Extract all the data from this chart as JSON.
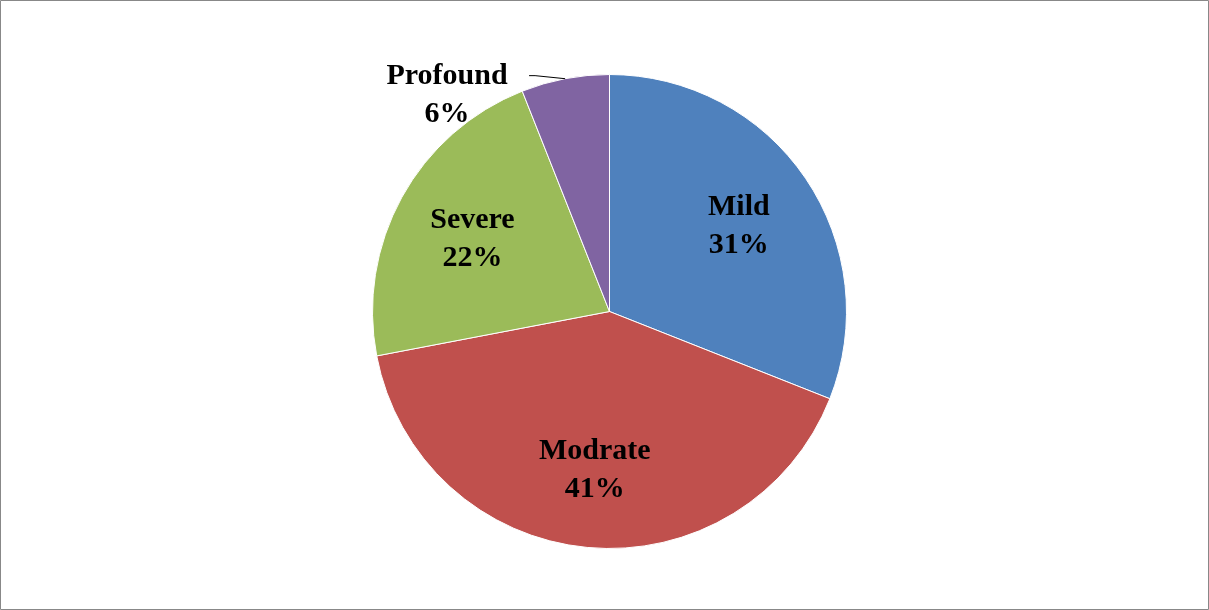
{
  "chart_data": {
    "type": "pie",
    "categories": [
      "Mild",
      "Modrate",
      "Severe",
      "Profound"
    ],
    "values": [
      31,
      41,
      22,
      6
    ],
    "colors": [
      "#4f81bd",
      "#c0504d",
      "#9bbb59",
      "#8064a2"
    ],
    "value_labels": [
      "31%",
      "41%",
      "22%",
      "6%"
    ]
  }
}
